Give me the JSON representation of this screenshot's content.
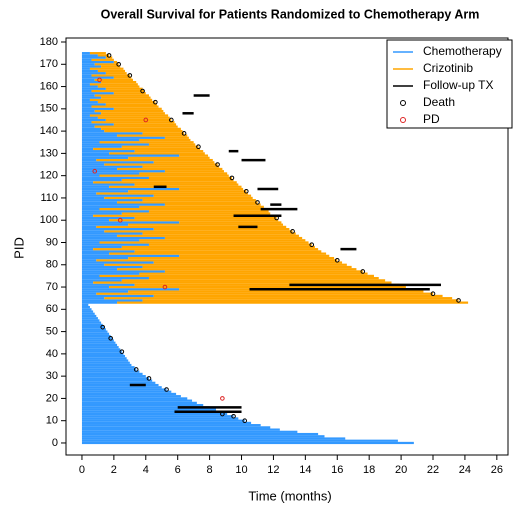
{
  "chart_data": {
    "type": "swimmer",
    "title": "Overall Survival for Patients Randomized to Chemotherapy Arm",
    "x_label": "Time (months)",
    "y_label": "PID",
    "xlim": [
      -1,
      26.7
    ],
    "ylim": [
      -5.4,
      181.8
    ],
    "xticks": [
      0,
      2,
      4,
      6,
      8,
      10,
      12,
      14,
      16,
      18,
      20,
      22,
      24,
      26
    ],
    "yticks": [
      0,
      10,
      20,
      30,
      40,
      50,
      60,
      70,
      80,
      90,
      100,
      110,
      120,
      130,
      140,
      150,
      160,
      170,
      180
    ],
    "series": [
      {
        "name": "Chemotherapy",
        "color": "#3399ff",
        "values": [
          20.8,
          19.8,
          16.5,
          15.2,
          14.8,
          13.5,
          12.4,
          11.8,
          11.2,
          10.6,
          10.2,
          9.8,
          9.5,
          9.1,
          8.8,
          8.4,
          8.0,
          7.6,
          7.2,
          6.9,
          6.6,
          6.2,
          5.9,
          5.6,
          5.3,
          5.0,
          4.8,
          4.6,
          4.4,
          4.2,
          4.0,
          3.8,
          3.6,
          3.4,
          3.3,
          3.1,
          3.0,
          2.9,
          2.8,
          2.7,
          2.6,
          2.5,
          2.4,
          2.3,
          2.2,
          2.1,
          2.0,
          1.9,
          1.8,
          1.7,
          1.6,
          1.5,
          1.4,
          1.3,
          1.2,
          1.1,
          1.0,
          0.9,
          0.8,
          0.7,
          0.6,
          0.5,
          0.4,
          2.2,
          3.8,
          1.4,
          4.5,
          0.9,
          2.9,
          6.1,
          1.7,
          3.3,
          0.7,
          2.5,
          4.2,
          1.1,
          3.6,
          5.2,
          2.2,
          3.8,
          1.4,
          4.5,
          0.9,
          2.9,
          6.1,
          1.7,
          3.3,
          0.7,
          2.5,
          4.2,
          1.1,
          3.6,
          5.2,
          2.2,
          3.8,
          1.4,
          4.5,
          0.9,
          2.9,
          6.1,
          1.7,
          3.3,
          0.7,
          2.5,
          4.2,
          1.1,
          3.6,
          5.2,
          2.2,
          3.8,
          1.4,
          4.5,
          0.9,
          2.9,
          6.1,
          1.7,
          3.3,
          0.7,
          2.5,
          4.2,
          1.1,
          3.6,
          5.2,
          2.2,
          3.8,
          1.4,
          4.5,
          0.9,
          2.9,
          6.1,
          1.7,
          3.3,
          0.7,
          2.5,
          4.2,
          1.1,
          3.6,
          5.2,
          2.2,
          3.8,
          1.4,
          1.2,
          0.8,
          2.0,
          0.6,
          1.5,
          1.0,
          0.5,
          1.2,
          0.8,
          2.0,
          0.6,
          1.5,
          1.0,
          0.5,
          1.2,
          0.8,
          2.0,
          0.6,
          1.5,
          1.0,
          0.5,
          1.2,
          0.8,
          2.0,
          0.6,
          1.5,
          1.0,
          0.5,
          1.2,
          0.8,
          2.0,
          0.6,
          1.5,
          1.0,
          0.5
        ]
      },
      {
        "name": "Crizotinib",
        "color": "#ffa500",
        "values": [
          null,
          null,
          null,
          null,
          null,
          null,
          null,
          null,
          null,
          null,
          null,
          null,
          null,
          null,
          null,
          null,
          null,
          null,
          null,
          null,
          null,
          null,
          null,
          null,
          null,
          null,
          null,
          null,
          null,
          null,
          null,
          null,
          null,
          null,
          null,
          null,
          null,
          null,
          null,
          null,
          null,
          null,
          null,
          null,
          null,
          null,
          null,
          null,
          null,
          null,
          null,
          null,
          null,
          null,
          null,
          null,
          null,
          null,
          null,
          null,
          null,
          null,
          null,
          24.2,
          23.6,
          23.2,
          22.6,
          22.0,
          21.4,
          20.9,
          20.3,
          19.9,
          19.4,
          19.0,
          18.6,
          18.3,
          17.9,
          17.6,
          17.2,
          16.9,
          16.6,
          16.3,
          16.0,
          15.8,
          15.5,
          15.3,
          15.0,
          14.8,
          14.6,
          14.4,
          14.2,
          14.0,
          13.8,
          13.6,
          13.4,
          13.2,
          13.0,
          12.8,
          12.6,
          12.5,
          12.3,
          12.2,
          12.0,
          11.8,
          11.7,
          11.5,
          11.4,
          11.2,
          11.0,
          10.9,
          10.7,
          10.6,
          10.4,
          10.3,
          10.1,
          10.0,
          9.8,
          9.7,
          9.5,
          9.4,
          9.2,
          9.1,
          8.9,
          8.8,
          8.6,
          8.5,
          8.3,
          8.2,
          8.0,
          7.9,
          7.7,
          7.6,
          7.4,
          7.3,
          7.1,
          7.0,
          6.8,
          6.7,
          6.6,
          6.4,
          6.3,
          6.2,
          6.0,
          5.9,
          5.8,
          5.6,
          5.5,
          5.4,
          5.2,
          5.1,
          5.0,
          4.8,
          4.7,
          4.6,
          4.4,
          4.3,
          4.2,
          4.0,
          3.9,
          3.8,
          3.6,
          3.5,
          3.4,
          3.2,
          3.1,
          3.0,
          2.8,
          2.7,
          2.6,
          2.4,
          2.3,
          2.2,
          2.0,
          1.9,
          1.7,
          1.5
        ]
      },
      {
        "name": "Follow-up TX",
        "color": "#000000",
        "pid": [
          69,
          71,
          87,
          102,
          105,
          107,
          114,
          127,
          131,
          148,
          156,
          26,
          16,
          14,
          97,
          115
        ],
        "start": [
          10.5,
          13,
          16.2,
          9.5,
          11.2,
          11.8,
          11,
          10,
          9.2,
          6.3,
          7,
          3,
          6,
          5.8,
          9.8,
          4.5
        ],
        "end": [
          21.8,
          22.5,
          17.2,
          12.5,
          13.5,
          12.5,
          12.3,
          11.5,
          9.8,
          7.0,
          8,
          4,
          10,
          10,
          11,
          5.3
        ]
      },
      {
        "name": "Death",
        "color": "#000000",
        "x": [
          23.6,
          22.0,
          17.6,
          16.0,
          14.4,
          13.2,
          12.2,
          11.0,
          10.3,
          9.4,
          8.5,
          7.3,
          6.4,
          5.6,
          4.6,
          3.8,
          3.0,
          2.3,
          1.7,
          10.2,
          9.5,
          8.8,
          5.3,
          4.2,
          3.4,
          2.5,
          1.8,
          1.3
        ],
        "y": [
          64,
          67,
          77,
          82,
          89,
          95,
          101,
          108,
          113,
          119,
          125,
          133,
          139,
          145,
          153,
          158,
          165,
          170,
          174,
          10,
          12,
          13,
          24,
          29,
          33,
          41,
          47,
          52
        ]
      },
      {
        "name": "PD",
        "color": "#dd2222",
        "x": [
          4.0,
          0.8,
          8.8,
          5.2,
          2.4,
          1.1
        ],
        "y": [
          145,
          122,
          20,
          70,
          100,
          163
        ]
      }
    ]
  }
}
